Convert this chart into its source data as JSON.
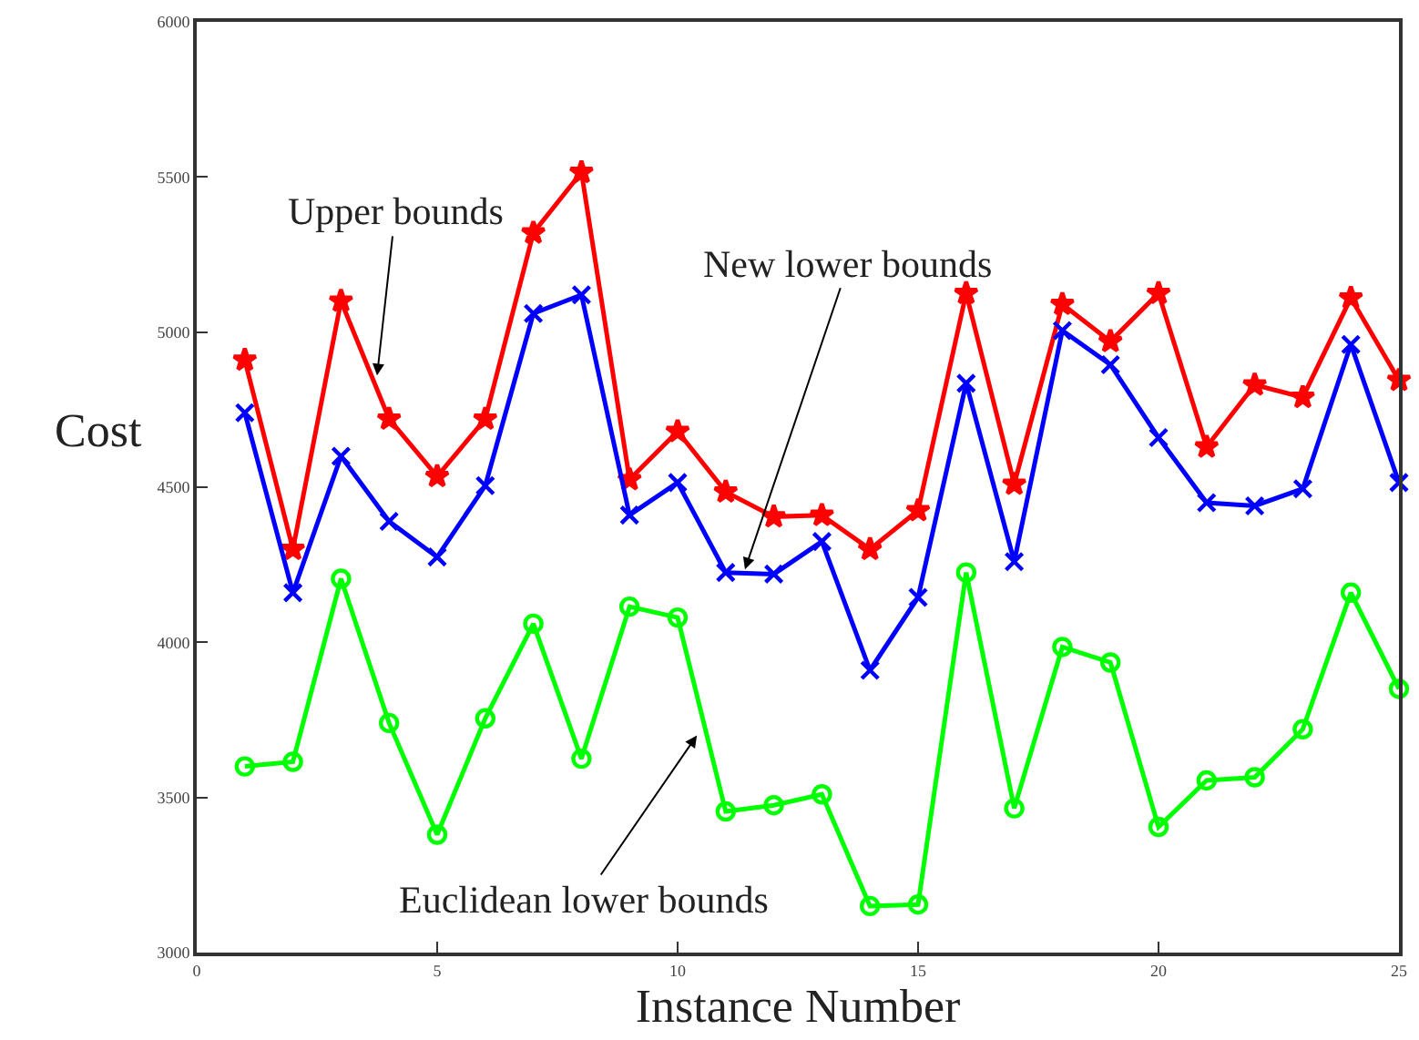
{
  "chart_data": {
    "type": "line",
    "xlabel": "Instance Number",
    "ylabel": "Cost",
    "x": [
      1,
      2,
      3,
      4,
      5,
      6,
      7,
      8,
      9,
      10,
      11,
      12,
      13,
      14,
      15,
      16,
      17,
      18,
      19,
      20,
      21,
      22,
      23,
      24,
      25
    ],
    "series": [
      {
        "color": "#ff0000",
        "marker": "star",
        "values": [
          4910,
          4300,
          5100,
          4720,
          4535,
          4720,
          5320,
          5515,
          4525,
          4680,
          4485,
          4405,
          4410,
          4300,
          4425,
          5125,
          4510,
          5090,
          4970,
          5125,
          4630,
          4830,
          4790,
          5110,
          4845
        ]
      },
      {
        "color": "#0000ff",
        "marker": "cross",
        "values": [
          4740,
          4160,
          4600,
          4390,
          4275,
          4505,
          5060,
          5120,
          4410,
          4515,
          4225,
          4220,
          4325,
          3910,
          4145,
          4835,
          4260,
          5005,
          4895,
          4660,
          4450,
          4440,
          4495,
          4960,
          4515
        ]
      },
      {
        "color": "#00ff00",
        "marker": "circle",
        "values": [
          3600,
          3615,
          4205,
          3740,
          3380,
          3755,
          4060,
          3625,
          4115,
          4080,
          3455,
          3475,
          3510,
          3150,
          3155,
          4225,
          3465,
          3985,
          3935,
          3405,
          3555,
          3565,
          3720,
          4160,
          3850
        ]
      }
    ],
    "annotations": [
      {
        "text": "Upper bounds",
        "x": 3.75,
        "y": 4860
      },
      {
        "text": "New lower bounds",
        "x": 11.4,
        "y": 4235
      },
      {
        "text": "Euclidean lower bounds",
        "x": 10.4,
        "y": 3700
      }
    ],
    "xlim": [
      0,
      25
    ],
    "xticks": [
      0,
      5,
      10,
      15,
      20,
      25
    ],
    "ylim": [
      3000,
      6000
    ],
    "yticks": [
      3000,
      3500,
      4000,
      4500,
      5000,
      5500,
      6000
    ],
    "line_style": "solid"
  }
}
